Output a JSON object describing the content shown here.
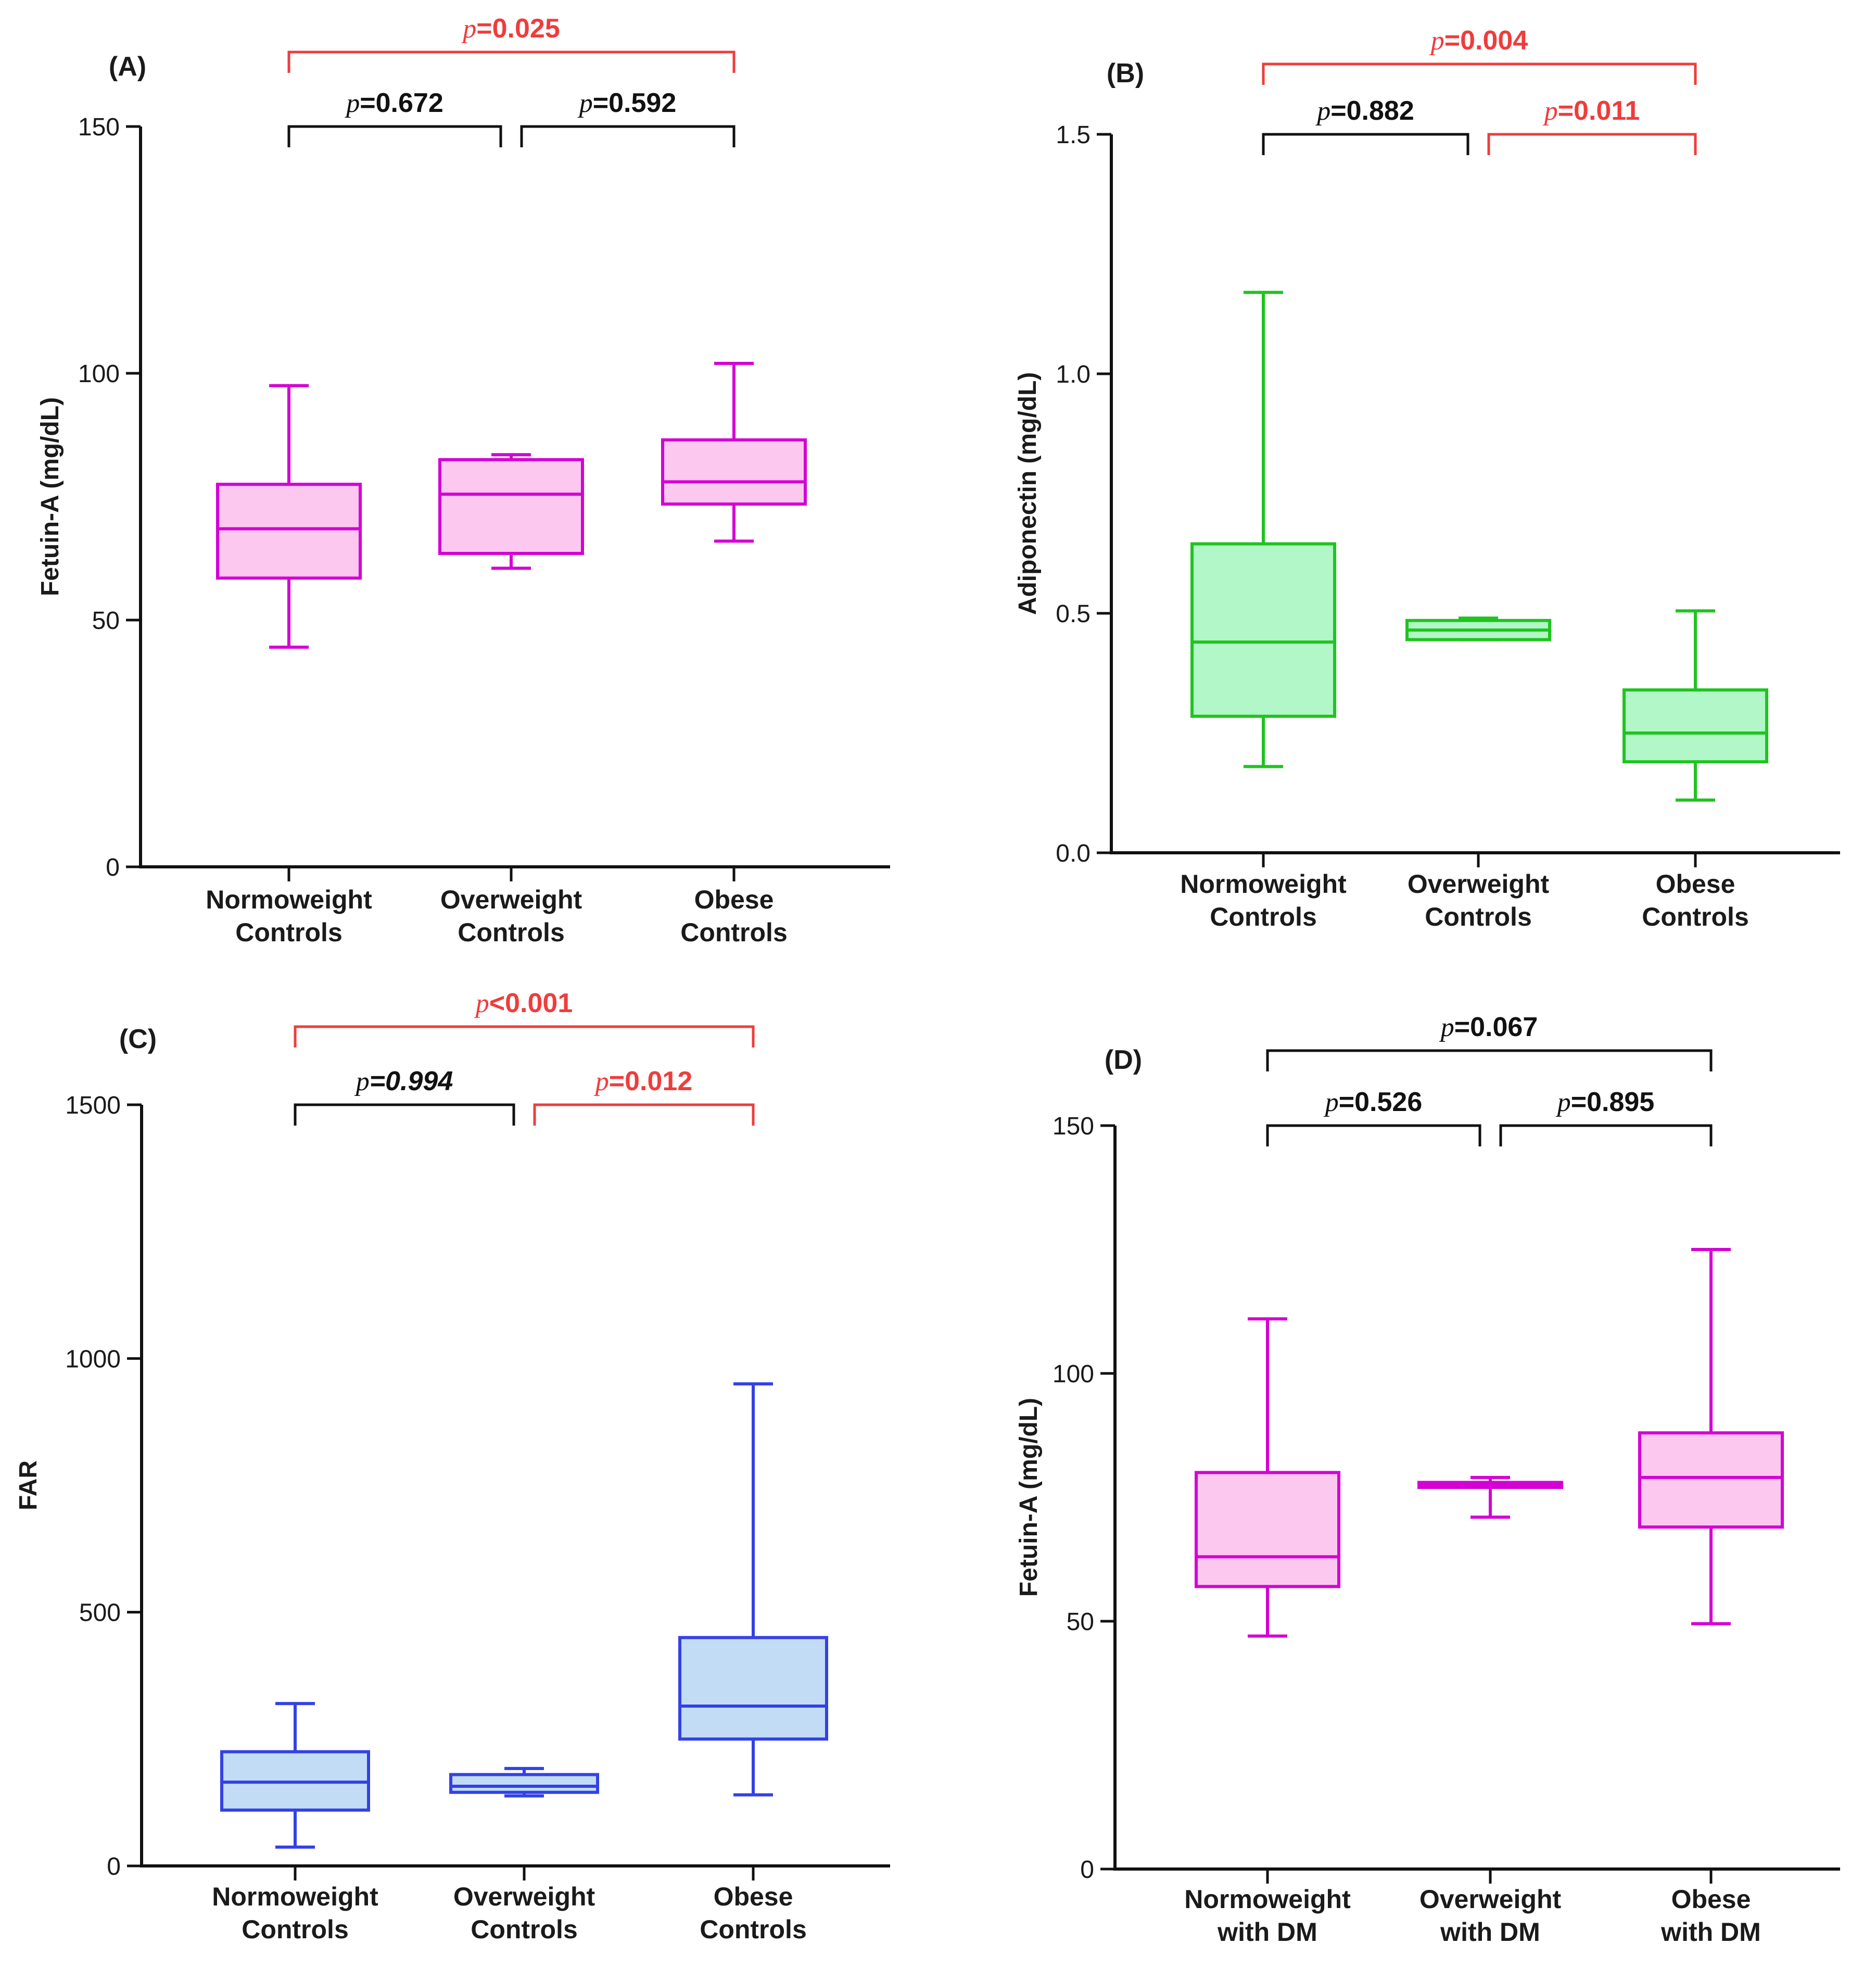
{
  "chart_data": [
    {
      "type": "box",
      "panel_label": "(A)",
      "ylabel": "Fetuin-A (mg/dL)",
      "ylim": [
        0,
        150
      ],
      "yticks": [
        0,
        50,
        100,
        150
      ],
      "color": "#d400d4",
      "fill": "#fcc8f0",
      "categories": [
        {
          "line1": "Normoweight",
          "line2": "Controls",
          "min": 44.5,
          "q1": 58.5,
          "median": 68.5,
          "q3": 77.5,
          "max": 97.5
        },
        {
          "line1": "Overweight",
          "line2": "Controls",
          "min": 60.5,
          "q1": 63.5,
          "median": 75.5,
          "q3": 82.5,
          "max": 83.5
        },
        {
          "line1": "Obese",
          "line2": "Controls",
          "min": 66.0,
          "q1": 73.5,
          "median": 78.0,
          "q3": 86.5,
          "max": 102.0
        }
      ],
      "comparisons": [
        {
          "from": 0,
          "to": 2,
          "level": 1,
          "p": "=0.025",
          "color": "#f03c3c",
          "italic_value": false
        },
        {
          "from": 0,
          "to": 1,
          "level": 0,
          "p": "=0.672",
          "color": "#111111",
          "italic_value": false
        },
        {
          "from": 1,
          "to": 2,
          "level": 0,
          "p": "=0.592",
          "color": "#111111",
          "italic_value": false
        }
      ]
    },
    {
      "type": "box",
      "panel_label": "(B)",
      "ylabel": "Adiponectin (mg/dL)",
      "ylim": [
        0,
        1.5
      ],
      "yticks": [
        0,
        0.5,
        1.0,
        1.5
      ],
      "ytick_labels": [
        "0.0",
        "0.5",
        "1.0",
        "1.5"
      ],
      "color": "#1fc41f",
      "fill": "#b2f7c8",
      "categories": [
        {
          "line1": "Normoweight",
          "line2": "Controls",
          "min": 0.18,
          "q1": 0.285,
          "median": 0.44,
          "q3": 0.645,
          "max": 1.17
        },
        {
          "line1": "Overweight",
          "line2": "Controls",
          "min": 0.445,
          "q1": 0.445,
          "median": 0.465,
          "q3": 0.485,
          "max": 0.49
        },
        {
          "line1": "Obese",
          "line2": "Controls",
          "min": 0.11,
          "q1": 0.19,
          "median": 0.25,
          "q3": 0.34,
          "max": 0.505
        }
      ],
      "comparisons": [
        {
          "from": 0,
          "to": 2,
          "level": 1,
          "p": "=0.004",
          "color": "#f03c3c",
          "italic_value": false
        },
        {
          "from": 0,
          "to": 1,
          "level": 0,
          "p": "=0.882",
          "color": "#111111",
          "italic_value": false
        },
        {
          "from": 1,
          "to": 2,
          "level": 0,
          "p": "=0.011",
          "color": "#f03c3c",
          "italic_value": false
        }
      ]
    },
    {
      "type": "box",
      "panel_label": "(C)",
      "ylabel": "FAR",
      "ylim": [
        0,
        1500
      ],
      "yticks": [
        0,
        500,
        1000,
        1500
      ],
      "color": "#3341e6",
      "fill": "#c2dcf6",
      "categories": [
        {
          "line1": "Normoweight",
          "line2": "Controls",
          "min": 37,
          "q1": 110,
          "median": 165,
          "q3": 225,
          "max": 320
        },
        {
          "line1": "Overweight",
          "line2": "Controls",
          "min": 138,
          "q1": 145,
          "median": 157,
          "q3": 180,
          "max": 192
        },
        {
          "line1": "Obese",
          "line2": "Controls",
          "min": 140,
          "q1": 250,
          "median": 315,
          "q3": 450,
          "max": 950
        }
      ],
      "comparisons": [
        {
          "from": 0,
          "to": 2,
          "level": 1,
          "p": "<0.001",
          "color": "#f03c3c",
          "italic_value": false
        },
        {
          "from": 0,
          "to": 1,
          "level": 0,
          "p": "=0.994",
          "color": "#111111",
          "italic_value": true
        },
        {
          "from": 1,
          "to": 2,
          "level": 0,
          "p": "=0.012",
          "color": "#f03c3c",
          "italic_value": false
        }
      ]
    },
    {
      "type": "box",
      "panel_label": "(D)",
      "ylabel": "Fetuin-A (mg/dL)",
      "ylim": [
        0,
        150
      ],
      "yticks": [
        0,
        50,
        100,
        150
      ],
      "color": "#d400d4",
      "fill": "#fcc8f0",
      "categories": [
        {
          "line1": "Normoweight",
          "line2": "with DM",
          "min": 47,
          "q1": 57,
          "median": 63,
          "q3": 80,
          "max": 111
        },
        {
          "line1": "Overweight",
          "line2": "with DM",
          "min": 71,
          "q1": 77,
          "median": 77.5,
          "q3": 78,
          "max": 79
        },
        {
          "line1": "Obese",
          "line2": "with DM",
          "min": 49.5,
          "q1": 69,
          "median": 79,
          "q3": 88,
          "max": 125
        }
      ],
      "comparisons": [
        {
          "from": 0,
          "to": 2,
          "level": 1,
          "p": "=0.067",
          "color": "#111111",
          "italic_value": false
        },
        {
          "from": 0,
          "to": 1,
          "level": 0,
          "p": "=0.526",
          "color": "#111111",
          "italic_value": false
        },
        {
          "from": 1,
          "to": 2,
          "level": 0,
          "p": "=0.895",
          "color": "#111111",
          "italic_value": false
        }
      ]
    }
  ]
}
